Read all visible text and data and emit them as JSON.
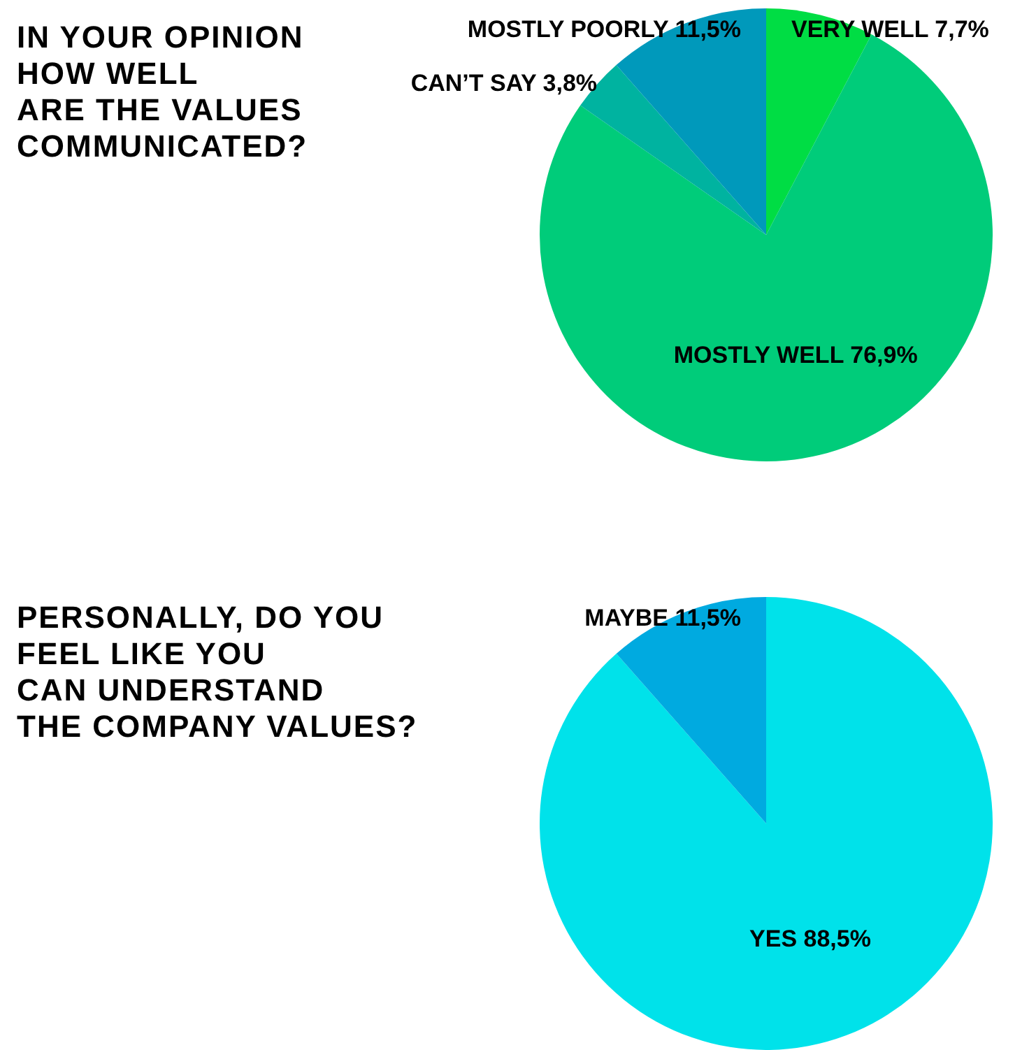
{
  "chart_data": [
    {
      "type": "pie",
      "title": "IN YOUR OPINION\nHOW WELL\nARE THE VALUES\nCOMMUNICATED?",
      "categories": [
        "VERY WELL",
        "MOSTLY WELL",
        "CAN’T SAY",
        "MOSTLY POORLY"
      ],
      "values": [
        7.7,
        76.9,
        3.8,
        11.5
      ],
      "value_labels": [
        "7,7%",
        "76,9%",
        "3,8%",
        "11,5%"
      ],
      "colors": [
        "#00dd44",
        "#00cc7a",
        "#00b3a0",
        "#0099bb"
      ],
      "legend": false
    },
    {
      "type": "pie",
      "title": "PERSONALLY, DO YOU\nFEEL LIKE YOU\nCAN UNDERSTAND\nTHE COMPANY VALUES?",
      "categories": [
        "YES",
        "MAYBE"
      ],
      "values": [
        88.5,
        11.5
      ],
      "value_labels": [
        "88,5%",
        "11,5%"
      ],
      "colors": [
        "#00e2ea",
        "#00aae0"
      ],
      "legend": false
    }
  ]
}
